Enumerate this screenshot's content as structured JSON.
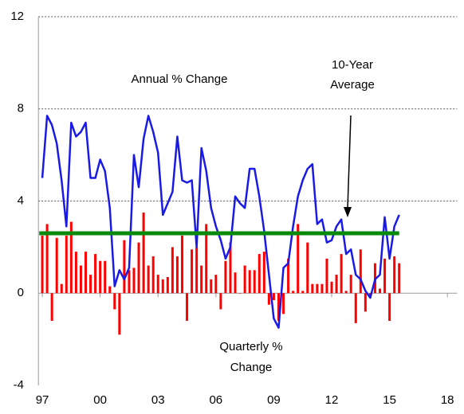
{
  "chart_data": {
    "type": "line",
    "xlim": [
      1996.8,
      2018.5
    ],
    "xticks": [
      {
        "value": 1997,
        "label": "97"
      },
      {
        "value": 2000,
        "label": "00"
      },
      {
        "value": 2003,
        "label": "03"
      },
      {
        "value": 2006,
        "label": "06"
      },
      {
        "value": 2009,
        "label": "09"
      },
      {
        "value": 2012,
        "label": "12"
      },
      {
        "value": 2015,
        "label": "15"
      },
      {
        "value": 2018,
        "label": "18"
      }
    ],
    "ylim": [
      -4,
      12
    ],
    "yticks": [
      -4,
      0,
      4,
      8,
      12
    ],
    "grid": true,
    "x": [
      1997,
      1997.25,
      1997.5,
      1997.75,
      1998,
      1998.25,
      1998.5,
      1998.75,
      1999,
      1999.25,
      1999.5,
      1999.75,
      2000,
      2000.25,
      2000.5,
      2000.75,
      2001,
      2001.25,
      2001.5,
      2001.75,
      2002,
      2002.25,
      2002.5,
      2002.75,
      2003,
      2003.25,
      2003.5,
      2003.75,
      2004,
      2004.25,
      2004.5,
      2004.75,
      2005,
      2005.25,
      2005.5,
      2005.75,
      2006,
      2006.25,
      2006.5,
      2006.75,
      2007,
      2007.25,
      2007.5,
      2007.75,
      2008,
      2008.25,
      2008.5,
      2008.75,
      2009,
      2009.25,
      2009.5,
      2009.75,
      2010,
      2010.25,
      2010.5,
      2010.75,
      2011,
      2011.25,
      2011.5,
      2011.75,
      2012,
      2012.25,
      2012.5,
      2012.75,
      2013,
      2013.25,
      2013.5,
      2013.75,
      2014,
      2014.25,
      2014.5,
      2014.75,
      2015,
      2015.25,
      2015.5
    ],
    "series": [
      {
        "label": [
          "Quarterly %",
          "Change"
        ],
        "kind": "bar",
        "color": "#ff0000",
        "values": [
          2.5,
          3.0,
          -1.2,
          2.4,
          0.4,
          2.5,
          3.1,
          1.8,
          1.2,
          1.8,
          0.8,
          1.7,
          1.4,
          1.4,
          0.3,
          -0.7,
          -1.8,
          2.3,
          1.0,
          1.1,
          2.2,
          3.5,
          1.2,
          1.6,
          0.8,
          0.6,
          0.7,
          2.0,
          1.6,
          2.5,
          -1.2,
          1.9,
          2.0,
          1.2,
          3.0,
          0.6,
          0.8,
          -0.7,
          1.4,
          2.2,
          0.9,
          0.0,
          1.2,
          1.0,
          1.0,
          1.7,
          1.8,
          -0.5,
          -0.3,
          -1.2,
          -0.9,
          1.5,
          0.1,
          3.0,
          0.1,
          2.2,
          0.4,
          0.4,
          0.4,
          1.5,
          0.5,
          0.8,
          1.7,
          0.1,
          0.8,
          -1.3,
          1.9,
          -0.8,
          -0.2,
          1.3,
          0.2,
          1.5,
          -1.2,
          1.6,
          1.3
        ]
      },
      {
        "label": [
          "Annual % Change"
        ],
        "kind": "line",
        "color": "#1a1ae6",
        "values": [
          5.0,
          7.7,
          7.3,
          6.5,
          4.9,
          2.9,
          7.4,
          6.8,
          7.0,
          7.4,
          5.0,
          5.0,
          5.8,
          5.3,
          3.7,
          0.3,
          1.0,
          0.6,
          1.1,
          6.0,
          4.6,
          6.7,
          7.7,
          7.0,
          6.1,
          3.4,
          3.9,
          4.4,
          6.8,
          4.9,
          4.8,
          4.9,
          2.0,
          6.3,
          5.3,
          3.7,
          2.9,
          2.3,
          1.5,
          2.0,
          4.2,
          3.9,
          3.7,
          5.4,
          5.4,
          4.2,
          2.7,
          0.8,
          -1.1,
          -1.5,
          1.1,
          1.3,
          2.9,
          4.2,
          4.9,
          5.4,
          5.6,
          3.0,
          3.2,
          2.2,
          2.3,
          2.9,
          3.2,
          1.7,
          1.9,
          0.8,
          0.6,
          0.1,
          -0.2,
          0.6,
          0.8,
          3.3,
          1.5,
          2.9,
          3.4
        ]
      }
    ],
    "average": {
      "value": 2.6,
      "label": [
        "10-Year",
        "Average"
      ],
      "color": "#0a8a0a"
    }
  }
}
